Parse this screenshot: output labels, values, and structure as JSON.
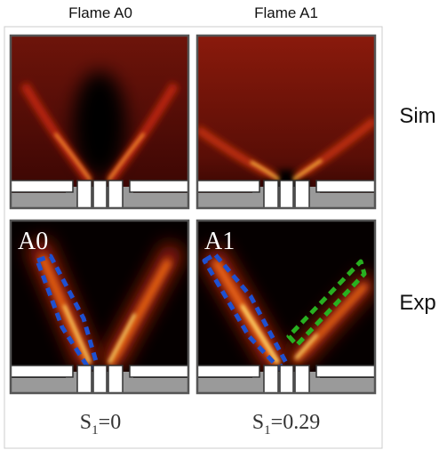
{
  "column_titles": [
    "Flame A0",
    "Flame A1"
  ],
  "row_labels": [
    "Sim",
    "Exp"
  ],
  "panel_labels": [
    "A0",
    "A1"
  ],
  "swirl_labels": [
    {
      "symbol": "S",
      "subscript": "1",
      "value": "=0"
    },
    {
      "symbol": "S",
      "subscript": "1",
      "value": "=0.29"
    }
  ]
}
